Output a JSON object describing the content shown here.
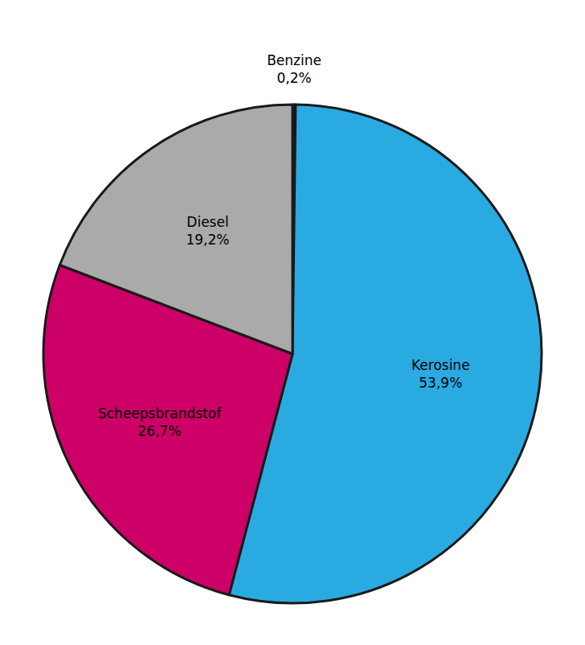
{
  "chart_data": {
    "type": "pie",
    "categories": [
      "Benzine",
      "Kerosine",
      "Scheepsbrandstof",
      "Diesel"
    ],
    "values": [
      0.2,
      53.9,
      26.7,
      19.2
    ],
    "value_labels": [
      "0,2%",
      "53,9%",
      "26,7%",
      "19,2%"
    ],
    "colors": [
      "#1a1a1a",
      "#29ABE2",
      "#CC0066",
      "#AAAAAA"
    ],
    "data_labels": true
  }
}
